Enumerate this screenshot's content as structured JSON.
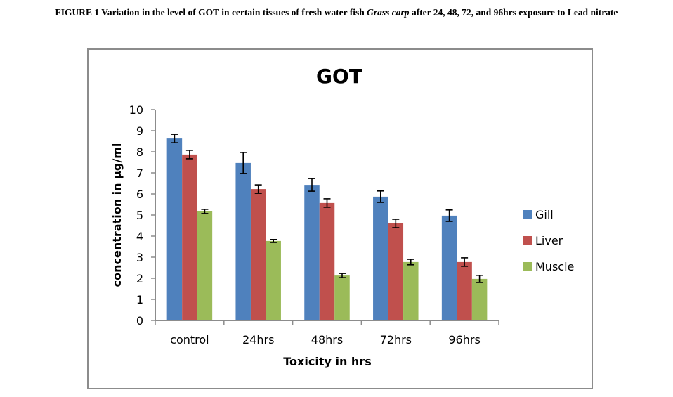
{
  "caption": {
    "prefix": "FIGURE 1 Variation in the level of GOT in certain tissues of fresh water fish ",
    "species": "Grass carp",
    "suffix": " after 24, 48, 72, and 96hrs exposure to Lead nitrate"
  },
  "chart_data": {
    "type": "bar",
    "title": "GOT",
    "xlabel": "Toxicity in hrs",
    "ylabel": "concentration  in µg/ml",
    "ylim": [
      0,
      10
    ],
    "yticks": [
      "0",
      "1",
      "2",
      "3",
      "4",
      "5",
      "6",
      "7",
      "8",
      "9",
      "10"
    ],
    "categories": [
      "control",
      "24hrs",
      "48hrs",
      "72hrs",
      "96hrs"
    ],
    "legend_position": "right",
    "grid": false,
    "series": [
      {
        "name": "Gill",
        "color": "#4f81bd",
        "values": [
          8.63,
          7.47,
          6.43,
          5.87,
          4.97
        ],
        "errors": [
          0.2,
          0.5,
          0.3,
          0.27,
          0.27
        ]
      },
      {
        "name": "Liver",
        "color": "#c0504d",
        "values": [
          7.87,
          6.23,
          5.57,
          4.6,
          2.77
        ],
        "errors": [
          0.2,
          0.2,
          0.2,
          0.2,
          0.2
        ]
      },
      {
        "name": "Muscle",
        "color": "#9bbb59",
        "values": [
          5.17,
          3.77,
          2.13,
          2.77,
          1.97
        ],
        "errors": [
          0.1,
          0.07,
          0.1,
          0.13,
          0.17
        ]
      }
    ]
  }
}
